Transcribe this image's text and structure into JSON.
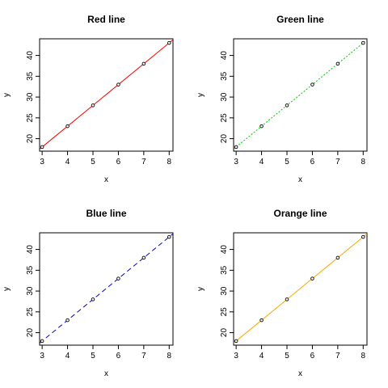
{
  "chart_data": [
    {
      "type": "line",
      "title": "Red line",
      "xlabel": "x",
      "ylabel": "y",
      "x": [
        3,
        4,
        5,
        6,
        7,
        8
      ],
      "y": [
        18,
        23,
        28,
        33,
        38,
        43
      ],
      "xlim": [
        2.9,
        8.15
      ],
      "ylim": [
        17,
        44
      ],
      "xticks": [
        "3",
        "4",
        "5",
        "6",
        "7",
        "8"
      ],
      "yticks": [
        "20",
        "25",
        "30",
        "35",
        "40"
      ],
      "line_color": "#ff0000",
      "line_style": "solid",
      "markers": "open-circle",
      "grid": false
    },
    {
      "type": "line",
      "title": "Green line",
      "xlabel": "x",
      "ylabel": "y",
      "x": [
        3,
        4,
        5,
        6,
        7,
        8
      ],
      "y": [
        18,
        23,
        28,
        33,
        38,
        43
      ],
      "xlim": [
        2.9,
        8.15
      ],
      "ylim": [
        17,
        44
      ],
      "xticks": [
        "3",
        "4",
        "5",
        "6",
        "7",
        "8"
      ],
      "yticks": [
        "20",
        "25",
        "30",
        "35",
        "40"
      ],
      "line_color": "#00cc00",
      "line_style": "dotted",
      "markers": "open-circle",
      "grid": false
    },
    {
      "type": "line",
      "title": "Blue line",
      "xlabel": "x",
      "ylabel": "y",
      "x": [
        3,
        4,
        5,
        6,
        7,
        8
      ],
      "y": [
        18,
        23,
        28,
        33,
        38,
        43
      ],
      "xlim": [
        2.9,
        8.15
      ],
      "ylim": [
        17,
        44
      ],
      "xticks": [
        "3",
        "4",
        "5",
        "6",
        "7",
        "8"
      ],
      "yticks": [
        "20",
        "25",
        "30",
        "35",
        "40"
      ],
      "line_color": "#0000cc",
      "line_style": "dashed",
      "markers": "open-circle",
      "grid": false
    },
    {
      "type": "line",
      "title": "Orange line",
      "xlabel": "x",
      "ylabel": "y",
      "x": [
        3,
        4,
        5,
        6,
        7,
        8
      ],
      "y": [
        18,
        23,
        28,
        33,
        38,
        43
      ],
      "xlim": [
        2.9,
        8.15
      ],
      "ylim": [
        17,
        44
      ],
      "xticks": [
        "3",
        "4",
        "5",
        "6",
        "7",
        "8"
      ],
      "yticks": [
        "20",
        "25",
        "30",
        "35",
        "40"
      ],
      "line_color": "#ffa500",
      "line_style": "solid",
      "markers": "open-circle",
      "grid": false
    }
  ]
}
